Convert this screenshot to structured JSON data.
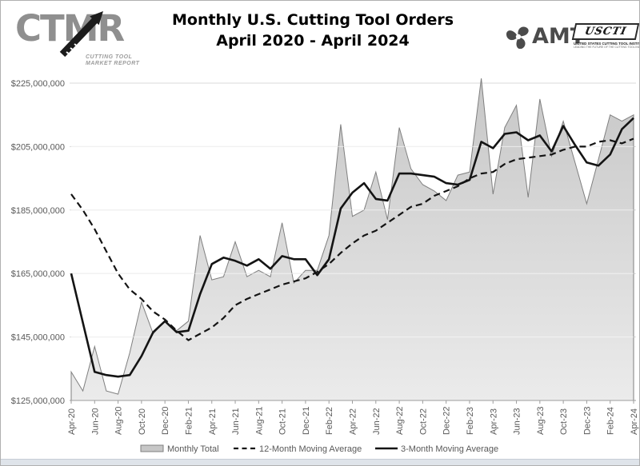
{
  "header": {
    "ctmr_logo": {
      "text": "CTMR",
      "tagline_line1": "CUTTING TOOL",
      "tagline_line2": "MARKET REPORT"
    },
    "title_line1": "Monthly U.S. Cutting Tool Orders",
    "title_line2": "April 2020 - April 2024",
    "amt_logo_text": "AMT",
    "uscti_logo": {
      "text": "USCTI",
      "subtitle": "UNITED STATES CUTTING TOOL INSTITUTE",
      "tagline": "LEADING THE FUTURE OF THE CUTTING TOOL INDUSTRY"
    }
  },
  "chart_data": {
    "type": "area",
    "title": "Monthly U.S. Cutting Tool Orders April 2020 - April 2024",
    "unit": "USD",
    "grid": "horizontal",
    "legend_position": "bottom",
    "y_axis": {
      "min": 125000000,
      "max": 225000000,
      "tick_interval": 20000000,
      "tick_labels": [
        "$225,000,000",
        "$205,000,000",
        "$185,000,000",
        "$165,000,000",
        "$145,000,000",
        "$125,000,000"
      ]
    },
    "x_axis": {
      "tick_labels": [
        "Apr-20",
        "Jun-20",
        "Aug-20",
        "Oct-20",
        "Dec-20",
        "Feb-21",
        "Apr-21",
        "Jun-21",
        "Aug-21",
        "Oct-21",
        "Dec-21",
        "Feb-22",
        "Apr-22",
        "Jun-22",
        "Aug-22",
        "Oct-22",
        "Dec-22",
        "Feb-23",
        "Apr-23",
        "Jun-23",
        "Aug-23",
        "Oct-23",
        "Dec-23",
        "Feb-24",
        "Apr-24"
      ]
    },
    "categories": [
      "Apr-20",
      "May-20",
      "Jun-20",
      "Jul-20",
      "Aug-20",
      "Sep-20",
      "Oct-20",
      "Nov-20",
      "Dec-20",
      "Jan-21",
      "Feb-21",
      "Mar-21",
      "Apr-21",
      "May-21",
      "Jun-21",
      "Jul-21",
      "Aug-21",
      "Sep-21",
      "Oct-21",
      "Nov-21",
      "Dec-21",
      "Jan-22",
      "Feb-22",
      "Mar-22",
      "Apr-22",
      "May-22",
      "Jun-22",
      "Jul-22",
      "Aug-22",
      "Sep-22",
      "Oct-22",
      "Nov-22",
      "Dec-22",
      "Jan-23",
      "Feb-23",
      "Mar-23",
      "Apr-23",
      "May-23",
      "Jun-23",
      "Jul-23",
      "Aug-23",
      "Sep-23",
      "Oct-23",
      "Nov-23",
      "Dec-23",
      "Jan-24",
      "Feb-24",
      "Mar-24",
      "Apr-24"
    ],
    "series": [
      {
        "name": "Monthly Total",
        "type": "area",
        "style": "filled",
        "values_millions": [
          134,
          128,
          142,
          128,
          127,
          140,
          156,
          146,
          150,
          147,
          150,
          177,
          163,
          164,
          175,
          164,
          166,
          164,
          181,
          162,
          166,
          166,
          177,
          212,
          183,
          185,
          197,
          182,
          211,
          198,
          193,
          191,
          188,
          196,
          197,
          226.5,
          190,
          211,
          218,
          189,
          220,
          202,
          213,
          200,
          187,
          201,
          215,
          213,
          215
        ]
      },
      {
        "name": "12-Month Moving Average",
        "type": "line",
        "style": "dashed",
        "values_millions": [
          190,
          185,
          179,
          172,
          165,
          160,
          157,
          153,
          150.5,
          147,
          144,
          146,
          148,
          151,
          155,
          157,
          158.5,
          160,
          161.5,
          162.5,
          163.5,
          165.5,
          168,
          171.5,
          174.5,
          177,
          178.5,
          181,
          183.5,
          186,
          187,
          189.5,
          191,
          192.5,
          195,
          196.5,
          197,
          199.5,
          201,
          201.5,
          202,
          202.5,
          204,
          205,
          205,
          206.5,
          207,
          206,
          207.5
        ]
      },
      {
        "name": "3-Month Moving Average",
        "type": "line",
        "style": "solid",
        "values_millions": [
          165,
          149.5,
          134,
          133,
          132.5,
          133,
          139,
          146.5,
          150,
          146.5,
          147,
          158.5,
          168,
          170,
          169,
          167.5,
          169.5,
          166.5,
          170.5,
          169.5,
          169.5,
          164.5,
          169.5,
          185.5,
          190.5,
          193.5,
          188.5,
          188,
          196.5,
          196.5,
          196,
          195.5,
          193.5,
          193,
          194.5,
          206.5,
          204.5,
          209,
          209.5,
          207,
          208.5,
          203.5,
          211.5,
          205.5,
          200,
          199,
          202.5,
          210.5,
          214
        ]
      }
    ],
    "colors": {
      "area_fill_top": "#c7c7c7",
      "area_fill_bottom": "#ebebeb",
      "area_stroke": "#7f7f7f",
      "line_color": "#141414",
      "grid_color": "#d9d9d9",
      "axis_color": "#9e9e9e",
      "text_color": "#595959"
    }
  },
  "legend": {
    "items": [
      {
        "label": "Monthly Total",
        "swatch": "area"
      },
      {
        "label": "12-Month Moving Average",
        "swatch": "dashed-line"
      },
      {
        "label": "3-Month Moving Average",
        "swatch": "solid-line"
      }
    ]
  }
}
